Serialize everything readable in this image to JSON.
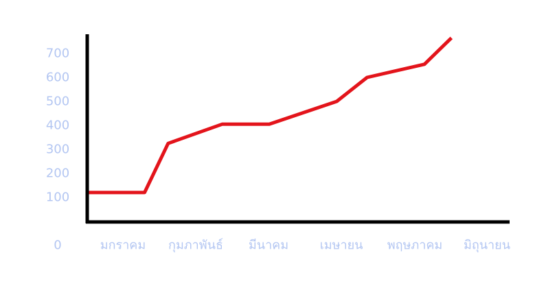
{
  "colors": {
    "line": "#e3141b",
    "axis": "#000000",
    "tick_label": "#b3c6f2",
    "background": "#ffffff"
  },
  "chart_data": {
    "type": "line",
    "title": "",
    "xlabel": "",
    "ylabel": "",
    "grid": false,
    "legend": "none",
    "categories": [
      "มกราคม",
      "กุมภาพันธ์",
      "มีนาคม",
      "เมษายน",
      "พฤษภาคม",
      "มิถุนายน"
    ],
    "y_ticks": [
      0,
      100,
      200,
      300,
      400,
      500,
      600,
      700
    ],
    "ylim": [
      0,
      800
    ],
    "series": [
      {
        "x": [
          0,
          0.85,
          1.2,
          2.0,
          2.7,
          3.7,
          4.15,
          5.0,
          5.4
        ],
        "values": [
          120,
          120,
          325,
          405,
          405,
          500,
          600,
          655,
          765
        ]
      }
    ]
  }
}
